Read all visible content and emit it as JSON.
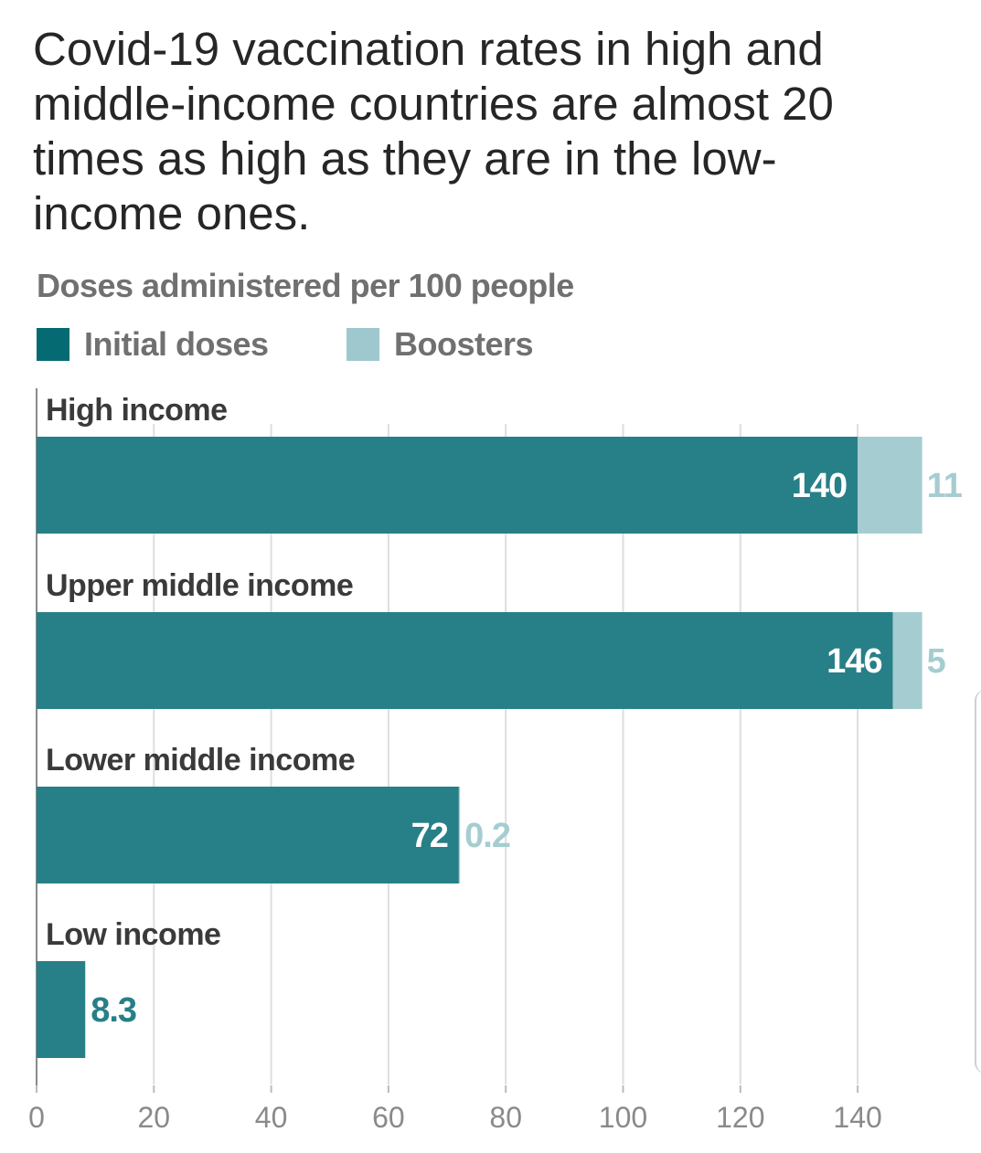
{
  "title": "Covid-19 vaccination rates in high and middle-income countries are almost 20 times as high as they are in the low-income ones.",
  "chart_data": {
    "type": "bar",
    "orientation": "horizontal",
    "stacked": true,
    "title": "Covid-19 vaccination rates in high and middle-income countries are almost 20 times as high as they are in the low-income ones.",
    "subtitle": "Doses administered per 100 people",
    "categories": [
      "High income",
      "Upper middle income",
      "Lower middle income",
      "Low income"
    ],
    "series": [
      {
        "name": "Initial doses",
        "color": "#277f87",
        "values": [
          140,
          146,
          72,
          8.3
        ]
      },
      {
        "name": "Boosters",
        "color": "#a5cdd1",
        "values": [
          11,
          5,
          0.2,
          null
        ]
      }
    ],
    "value_labels": {
      "Initial doses": [
        "140",
        "146",
        "72",
        "8.3"
      ],
      "Boosters": [
        "11",
        "5",
        "0.2",
        ""
      ]
    },
    "xlim": [
      0,
      150
    ],
    "xticks": [
      0,
      20,
      40,
      60,
      80,
      100,
      120,
      140
    ],
    "grid": "vertical",
    "legend": "top-left"
  },
  "legend_swatch_colors": {
    "initial": "#066a73",
    "boosters": "#9ec8cd"
  },
  "label_colors": {
    "initial_outside": "#277f87",
    "booster": "#a5cdd1",
    "inside": "#ffffff"
  }
}
